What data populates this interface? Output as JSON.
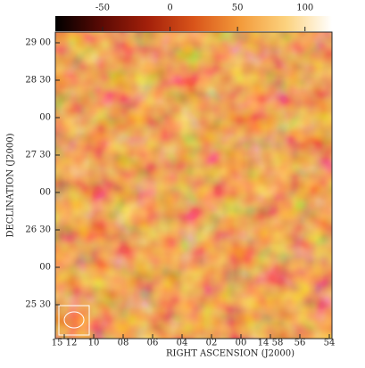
{
  "colorbar": {
    "lim": [
      -85,
      120
    ],
    "ticks": [
      -50,
      0,
      50,
      100
    ],
    "colors": [
      "#000000",
      "#5a0a04",
      "#a3200a",
      "#d9541a",
      "#f39a3a",
      "#fcd27e",
      "#ffffff"
    ]
  },
  "axes": {
    "xlabel": "RIGHT ASCENSION (J2000)",
    "ylabel": "DECLINATION (J2000)",
    "xtick_labels": [
      "15 12",
      "10",
      "08",
      "06",
      "04",
      "02",
      "00",
      "14 58",
      "56",
      "54"
    ],
    "ytick_labels": [
      "29 00",
      "28 30",
      "00",
      "27 30",
      "00",
      "26 30",
      "00",
      "25 30"
    ]
  }
}
